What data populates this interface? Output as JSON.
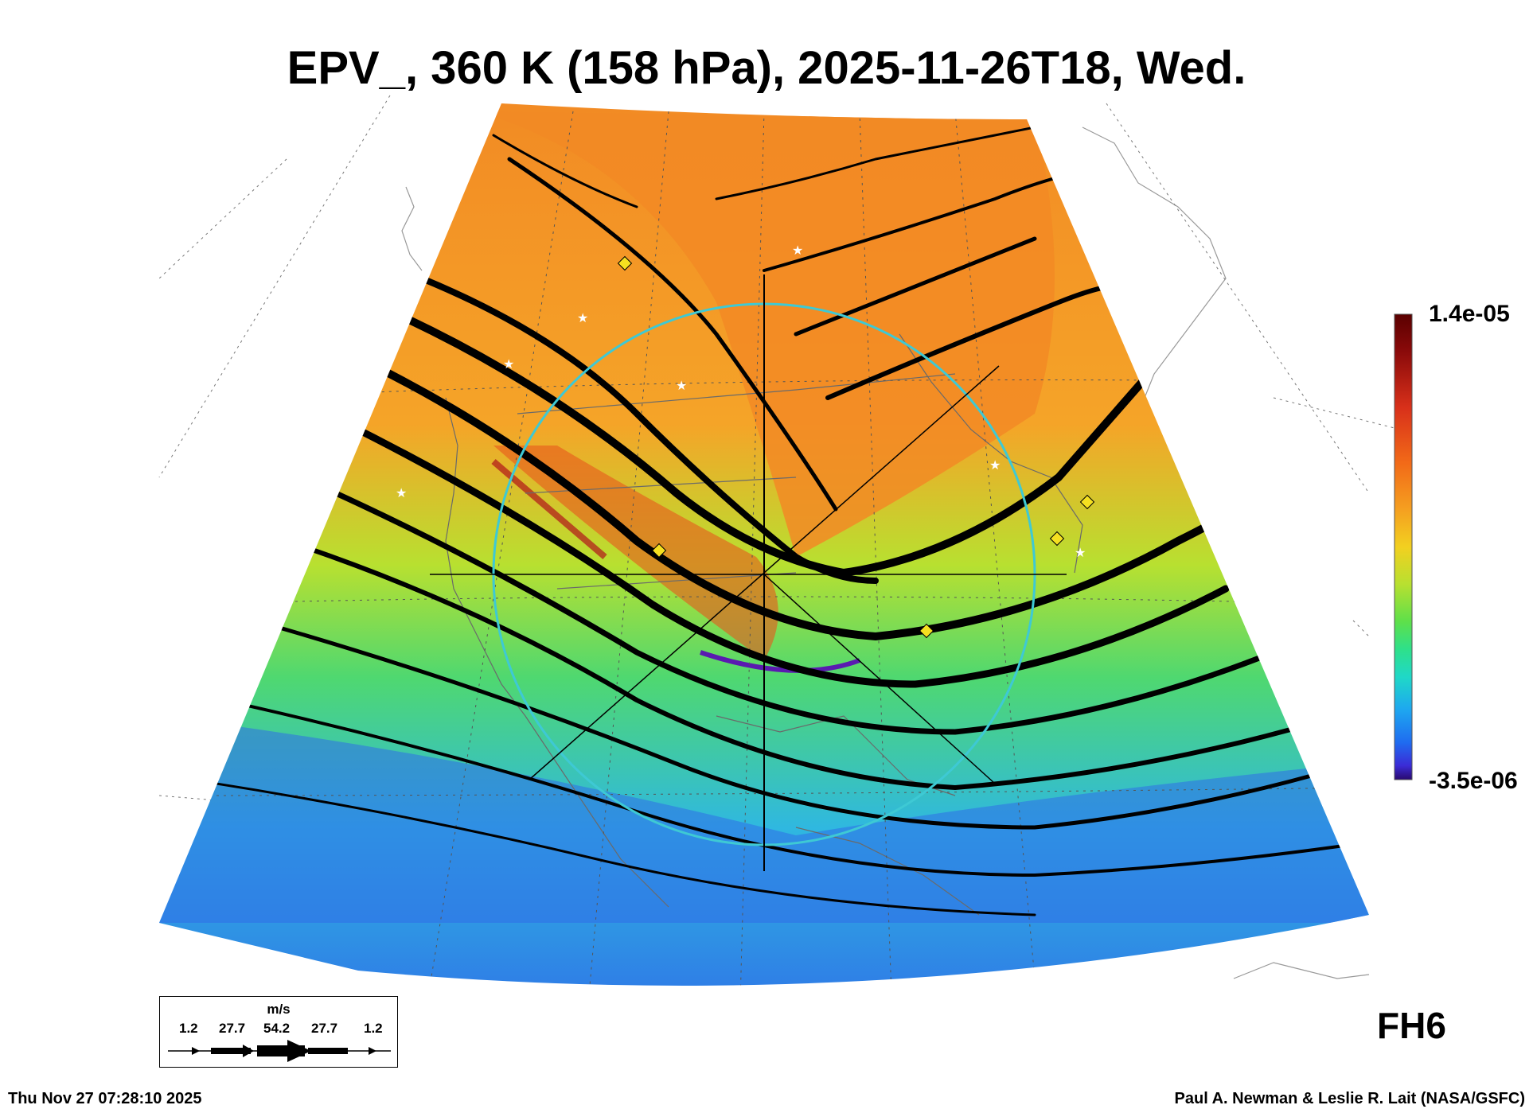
{
  "title": "EPV_, 360 K (158 hPa), 2025-11-26T18, Wed.",
  "colorbar": {
    "max_label": "1.4e-05",
    "min_label": "-3.5e-06",
    "colors": [
      "#2a0a6e",
      "#3b2bd6",
      "#1f6cf0",
      "#1ea7f0",
      "#1fd8c8",
      "#2ee08a",
      "#5ee04a",
      "#b8e030",
      "#f2d020",
      "#f5a020",
      "#f26a18",
      "#d8301a",
      "#8a0a0a",
      "#5a0000"
    ]
  },
  "legend": {
    "unit": "m/s",
    "values": [
      "1.2",
      "27.7",
      "54.2",
      "27.7",
      "1.2"
    ]
  },
  "forecast_hour_label": "FH6",
  "timestamp": "Thu Nov 27 07:28:10 2025",
  "credit": "Paul A. Newman & Leslie R. Lait (NASA/GSFC)",
  "field_colors": {
    "high": "#f28a24",
    "mid": "#6ad856",
    "low": "#2f88ea",
    "outline": "#7b7b7b",
    "streamline": "#000000",
    "ring": "#3ec9d4",
    "marker_yellow": "#f5e020"
  }
}
